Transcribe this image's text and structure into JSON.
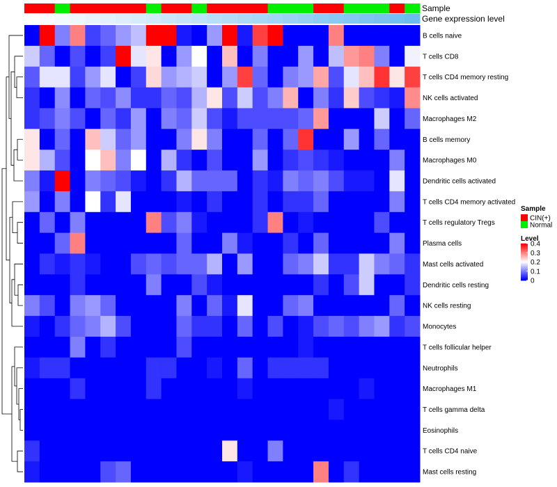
{
  "chart_data": {
    "type": "heatmap",
    "title": "",
    "annotation_labels": {
      "sample": "Sample",
      "gene_expression": "Gene expression level"
    },
    "sample_colors": {
      "CIN(+)": "#ff0000",
      "Normal": "#00ee00"
    },
    "sample_groups": [
      "CIN(+)",
      "CIN(+)",
      "Normal",
      "CIN(+)",
      "CIN(+)",
      "CIN(+)",
      "CIN(+)",
      "CIN(+)",
      "Normal",
      "CIN(+)",
      "CIN(+)",
      "Normal",
      "CIN(+)",
      "CIN(+)",
      "CIN(+)",
      "CIN(+)",
      "Normal",
      "Normal",
      "Normal",
      "CIN(+)",
      "CIN(+)",
      "Normal",
      "Normal",
      "Normal",
      "CIN(+)",
      "Normal"
    ],
    "gene_expression_gradient": [
      "#ffffff",
      "#6cbcf0"
    ],
    "rows": [
      "B cells naive",
      "T cells CD8",
      "T cells CD4 memory resting",
      "NK cells activated",
      "Macrophages M2",
      "B cells memory",
      "Macrophages M0",
      "Dendritic cells activated",
      "T cells CD4 memory activated",
      "T cells regulatory  Tregs",
      "Plasma cells",
      "Mast cells activated",
      "Dendritic cells resting",
      "NK cells resting",
      "Monocytes",
      "T cells follicular helper",
      "Neutrophils",
      "Macrophages M1",
      "T cells gamma delta",
      "Eosinophils",
      "T cells CD4 naive",
      "Mast cells resting"
    ],
    "values": [
      [
        0.0,
        0.4,
        0.1,
        0.3,
        0.05,
        0.08,
        0.12,
        0.15,
        0.4,
        0.4,
        0.02,
        0.0,
        0.12,
        0.4,
        0.02,
        0.35,
        0.4,
        0.0,
        0.0,
        0.0,
        0.3,
        0.0,
        0.0,
        0.0,
        0.0,
        0.0
      ],
      [
        0.16,
        0.08,
        0.0,
        0.06,
        0.0,
        0.05,
        0.4,
        0.18,
        0.22,
        0.0,
        0.12,
        0.2,
        0.0,
        0.25,
        0.0,
        0.1,
        0.0,
        0.0,
        0.12,
        0.0,
        0.15,
        0.28,
        0.3,
        0.1,
        0.0,
        0.19
      ],
      [
        0.07,
        0.18,
        0.18,
        0.05,
        0.12,
        0.18,
        0.0,
        0.05,
        0.23,
        0.12,
        0.14,
        0.16,
        0.0,
        0.12,
        0.35,
        0.08,
        0.0,
        0.1,
        0.12,
        0.27,
        0.06,
        0.18,
        0.25,
        0.36,
        0.22,
        0.35
      ],
      [
        0.04,
        0.0,
        0.11,
        0.0,
        0.08,
        0.06,
        0.11,
        0.04,
        0.04,
        0.08,
        0.06,
        0.14,
        0.22,
        0.06,
        0.16,
        0.06,
        0.1,
        0.26,
        0.0,
        0.1,
        0.04,
        0.24,
        0.06,
        0.04,
        0.02,
        0.29
      ],
      [
        0.04,
        0.06,
        0.1,
        0.06,
        0.0,
        0.08,
        0.04,
        0.12,
        0.0,
        0.1,
        0.08,
        0.16,
        0.06,
        0.02,
        0.06,
        0.06,
        0.06,
        0.06,
        0.08,
        0.28,
        0.0,
        0.0,
        0.0,
        0.16,
        0.0,
        0.08
      ],
      [
        0.22,
        0.0,
        0.08,
        0.0,
        0.25,
        0.16,
        0.08,
        0.12,
        0.0,
        0.0,
        0.1,
        0.22,
        0.1,
        0.0,
        0.0,
        0.08,
        0.0,
        0.08,
        0.36,
        0.0,
        0.0,
        0.12,
        0.0,
        0.08,
        0.0,
        0.0
      ],
      [
        0.22,
        0.14,
        0.06,
        0.0,
        0.2,
        0.25,
        0.1,
        0.2,
        0.0,
        0.14,
        0.04,
        0.0,
        0.06,
        0.0,
        0.0,
        0.12,
        0.0,
        0.04,
        0.06,
        0.04,
        0.02,
        0.0,
        0.0,
        0.0,
        0.1,
        0.0
      ],
      [
        0.1,
        0.02,
        0.4,
        0.0,
        0.1,
        0.08,
        0.06,
        0.02,
        0.0,
        0.04,
        0.14,
        0.08,
        0.08,
        0.08,
        0.0,
        0.04,
        0.02,
        0.1,
        0.08,
        0.1,
        0.06,
        0.02,
        0.02,
        0.0,
        0.18,
        0.0
      ],
      [
        0.12,
        0.0,
        0.1,
        0.0,
        0.2,
        0.04,
        0.18,
        0.0,
        0.0,
        0.0,
        0.02,
        0.0,
        0.04,
        0.0,
        0.0,
        0.04,
        0.0,
        0.04,
        0.04,
        0.08,
        0.0,
        0.0,
        0.0,
        0.0,
        0.1,
        0.0
      ],
      [
        0.0,
        0.08,
        0.0,
        0.1,
        0.0,
        0.0,
        0.0,
        0.0,
        0.3,
        0.06,
        0.1,
        0.02,
        0.0,
        0.0,
        0.0,
        0.04,
        0.3,
        0.0,
        0.02,
        0.0,
        0.0,
        0.0,
        0.0,
        0.06,
        0.0,
        0.0
      ],
      [
        0.0,
        0.0,
        0.08,
        0.3,
        0.0,
        0.0,
        0.0,
        0.0,
        0.0,
        0.0,
        0.08,
        0.0,
        0.0,
        0.1,
        0.02,
        0.0,
        0.0,
        0.04,
        0.0,
        0.08,
        0.0,
        0.0,
        0.0,
        0.0,
        0.1,
        0.0
      ],
      [
        0.0,
        0.04,
        0.02,
        0.04,
        0.02,
        0.0,
        0.0,
        0.06,
        0.08,
        0.06,
        0.08,
        0.08,
        0.14,
        0.0,
        0.12,
        0.0,
        0.0,
        0.08,
        0.1,
        0.16,
        0.04,
        0.04,
        0.16,
        0.1,
        0.08,
        0.04
      ],
      [
        0.0,
        0.0,
        0.0,
        0.04,
        0.0,
        0.0,
        0.0,
        0.0,
        0.1,
        0.0,
        0.0,
        0.06,
        0.02,
        0.0,
        0.0,
        0.0,
        0.0,
        0.0,
        0.0,
        0.04,
        0.0,
        0.06,
        0.16,
        0.0,
        0.0,
        0.04
      ],
      [
        0.1,
        0.06,
        0.0,
        0.1,
        0.12,
        0.08,
        0.0,
        0.0,
        0.0,
        0.0,
        0.1,
        0.0,
        0.08,
        0.02,
        0.18,
        0.0,
        0.0,
        0.08,
        0.1,
        0.0,
        0.0,
        0.0,
        0.0,
        0.0,
        0.08,
        0.0
      ],
      [
        0.02,
        0.0,
        0.04,
        0.08,
        0.1,
        0.14,
        0.06,
        0.0,
        0.0,
        0.0,
        0.08,
        0.04,
        0.04,
        0.0,
        0.08,
        0.0,
        0.06,
        0.0,
        0.02,
        0.06,
        0.08,
        0.06,
        0.1,
        0.12,
        0.04,
        0.06
      ],
      [
        0.0,
        0.0,
        0.0,
        0.1,
        0.0,
        0.04,
        0.0,
        0.0,
        0.0,
        0.0,
        0.06,
        0.0,
        0.0,
        0.0,
        0.0,
        0.0,
        0.0,
        0.0,
        0.02,
        0.0,
        0.0,
        0.0,
        0.0,
        0.0,
        0.0,
        0.0
      ],
      [
        0.02,
        0.04,
        0.04,
        0.0,
        0.0,
        0.0,
        0.0,
        0.0,
        0.04,
        0.04,
        0.0,
        0.0,
        0.02,
        0.0,
        0.08,
        0.0,
        0.04,
        0.04,
        0.04,
        0.04,
        0.0,
        0.0,
        0.0,
        0.0,
        0.0,
        0.0
      ],
      [
        0.0,
        0.0,
        0.0,
        0.04,
        0.0,
        0.0,
        0.0,
        0.0,
        0.04,
        0.0,
        0.0,
        0.0,
        0.0,
        0.0,
        0.02,
        0.0,
        0.0,
        0.0,
        0.0,
        0.0,
        0.0,
        0.0,
        0.02,
        0.0,
        0.0,
        0.0
      ],
      [
        0.0,
        0.0,
        0.0,
        0.0,
        0.0,
        0.0,
        0.0,
        0.0,
        0.0,
        0.0,
        0.0,
        0.0,
        0.0,
        0.0,
        0.0,
        0.0,
        0.0,
        0.0,
        0.0,
        0.0,
        0.02,
        0.0,
        0.0,
        0.0,
        0.0,
        0.0
      ],
      [
        0.0,
        0.0,
        0.0,
        0.0,
        0.0,
        0.0,
        0.0,
        0.0,
        0.0,
        0.0,
        0.0,
        0.0,
        0.0,
        0.0,
        0.0,
        0.0,
        0.0,
        0.0,
        0.0,
        0.0,
        0.0,
        0.0,
        0.0,
        0.0,
        0.0,
        0.0
      ],
      [
        0.04,
        0.0,
        0.0,
        0.0,
        0.0,
        0.0,
        0.0,
        0.0,
        0.0,
        0.0,
        0.0,
        0.0,
        0.0,
        0.22,
        0.0,
        0.0,
        0.1,
        0.0,
        0.0,
        0.0,
        0.0,
        0.0,
        0.0,
        0.0,
        0.0,
        0.0
      ],
      [
        0.02,
        0.0,
        0.0,
        0.0,
        0.0,
        0.06,
        0.08,
        0.0,
        0.0,
        0.0,
        0.0,
        0.0,
        0.0,
        0.0,
        0.02,
        0.0,
        0.0,
        0.0,
        0.0,
        0.3,
        0.0,
        0.04,
        0.0,
        0.0,
        0.0,
        0.0
      ]
    ],
    "color_scale": {
      "min": 0,
      "max": 0.4,
      "low": "#0000ff",
      "mid": "#ffffff",
      "high": "#ff0000",
      "mid_value": 0.2
    },
    "legend": {
      "sample_title": "Sample",
      "sample_entries": [
        "CIN(+)",
        "Normal"
      ],
      "level_title": "Level",
      "level_ticks": [
        "0.4",
        "0.3",
        "0.2",
        "0.1",
        "0"
      ],
      "level_tick_values": [
        0.4,
        0.3,
        0.2,
        0.1,
        0
      ]
    },
    "row_dendrogram": true
  }
}
